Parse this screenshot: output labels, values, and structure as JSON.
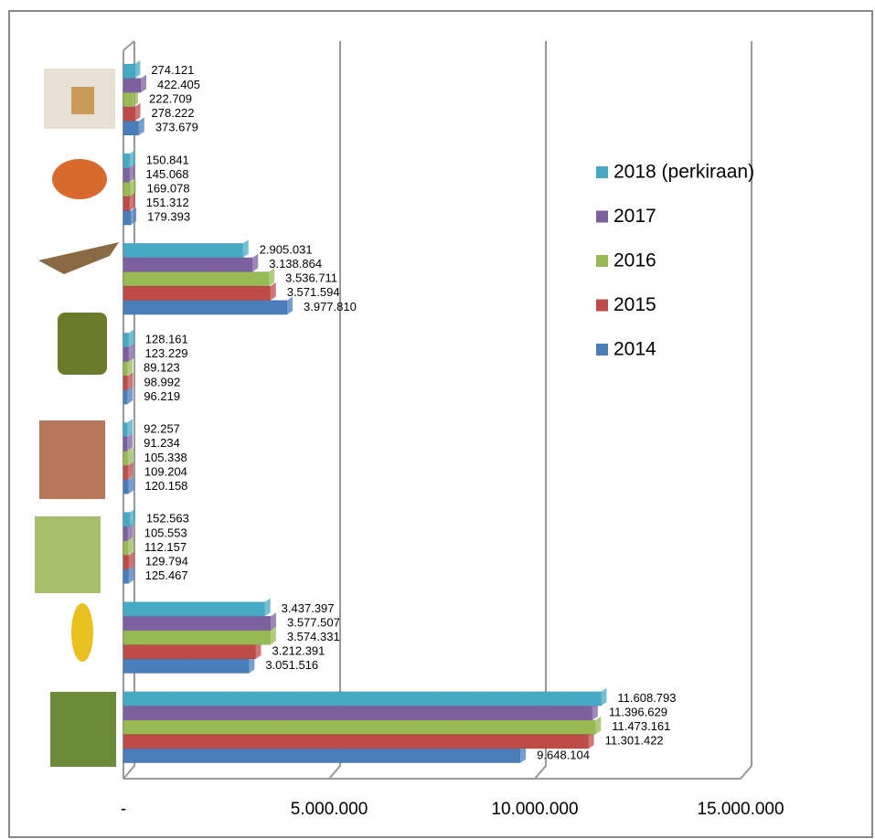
{
  "chart_data": {
    "type": "bar",
    "orientation": "horizontal",
    "categories": [
      null,
      null,
      null,
      null,
      null,
      null,
      null,
      null
    ],
    "series": [
      {
        "name": "2014",
        "color": "#4a7ebb",
        "values": [
          373679,
          179393,
          3977810,
          96219,
          120158,
          125467,
          3051516,
          9648104
        ],
        "value_labels": [
          "373.679",
          "179.393",
          "3.977.810",
          "96.219",
          "120.158",
          "125.467",
          "3.051.516",
          "9.648.104"
        ]
      },
      {
        "name": "2015",
        "color": "#be4b48",
        "values": [
          278222,
          151312,
          3571594,
          98992,
          109204,
          129794,
          3212391,
          11301422
        ],
        "value_labels": [
          "278.222",
          "151.312",
          "3.571.594",
          "98.992",
          "109.204",
          "129.794",
          "3.212.391",
          "11.301.422"
        ]
      },
      {
        "name": "2016",
        "color": "#98b954",
        "values": [
          222709,
          169078,
          3536711,
          89123,
          105338,
          112157,
          3574331,
          11473161
        ],
        "value_labels": [
          "222.709",
          "169.078",
          "3.536.711",
          "89.123",
          "105.338",
          "112.157",
          "3.574.331",
          "11.473.161"
        ]
      },
      {
        "name": "2017",
        "color": "#7d60a0",
        "values": [
          422405,
          145068,
          3138864,
          123229,
          91234,
          105553,
          3577507,
          11396629
        ],
        "value_labels": [
          "422.405",
          "145.068",
          "3.138.864",
          "123.229",
          "91.234",
          "105.553",
          "3.577.507",
          "11.396.629"
        ]
      },
      {
        "name": "2018 (perkiraan)",
        "color": "#46aac5",
        "values": [
          274121,
          150841,
          2905031,
          128161,
          92257,
          152563,
          3437397,
          11608793
        ],
        "value_labels": [
          "274.121",
          "150.841",
          "2.905.031",
          "128.161",
          "92.257",
          "152.563",
          "3.437.397",
          "11.608.793"
        ]
      }
    ],
    "xlim": [
      0,
      15000000
    ],
    "xticks": [
      {
        "value": 0,
        "label": "-"
      },
      {
        "value": 5000000,
        "label": "5.000.000"
      },
      {
        "value": 10000000,
        "label": "10.000.000"
      },
      {
        "value": 15000000,
        "label": "15.000.000"
      }
    ],
    "grid": true,
    "legend": "right"
  }
}
